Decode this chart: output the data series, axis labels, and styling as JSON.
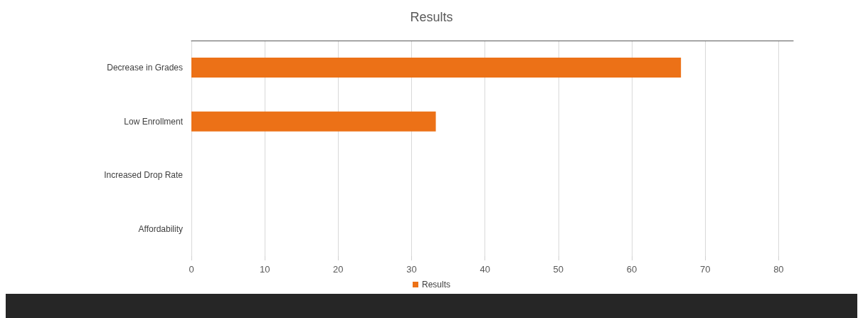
{
  "chart_data": {
    "type": "bar",
    "orientation": "horizontal",
    "title": "Results",
    "categories": [
      "Decrease in Grades",
      "Low Enrollment",
      "Increased Drop Rate",
      "Affordability"
    ],
    "series": [
      {
        "name": "Results",
        "color": "#ec7117",
        "values": [
          66.7,
          33.3,
          0,
          0
        ]
      }
    ],
    "xlim": [
      0,
      82
    ],
    "xticks": [
      0,
      10,
      20,
      30,
      40,
      50,
      60,
      70,
      80
    ],
    "grid": "x",
    "legend": "bottom"
  }
}
